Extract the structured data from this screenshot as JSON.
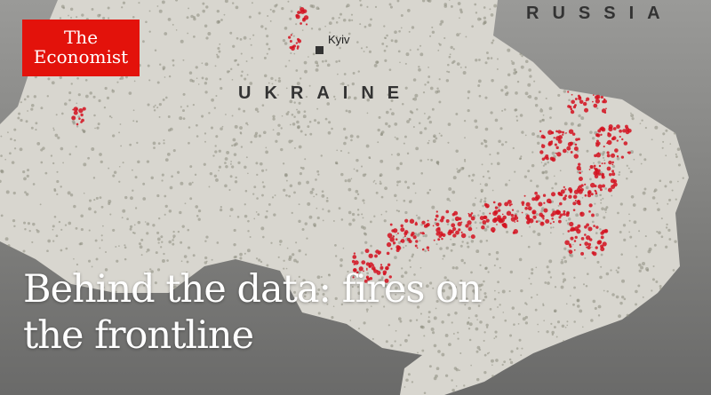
{
  "brand": {
    "line1": "The",
    "line2": "Economist",
    "color": "#e3120b"
  },
  "labels": {
    "russia": "RUSSIA",
    "ukraine": "UKRAINE",
    "kyiv": "Kyiv"
  },
  "headline": {
    "line1": "Behind the data: fires on",
    "line2": "the frontline"
  },
  "colors": {
    "land": "#d8d6cf",
    "background": "#888886",
    "settlement_dot": "#8d8d7e",
    "fire_dot": "#d4101e"
  }
}
